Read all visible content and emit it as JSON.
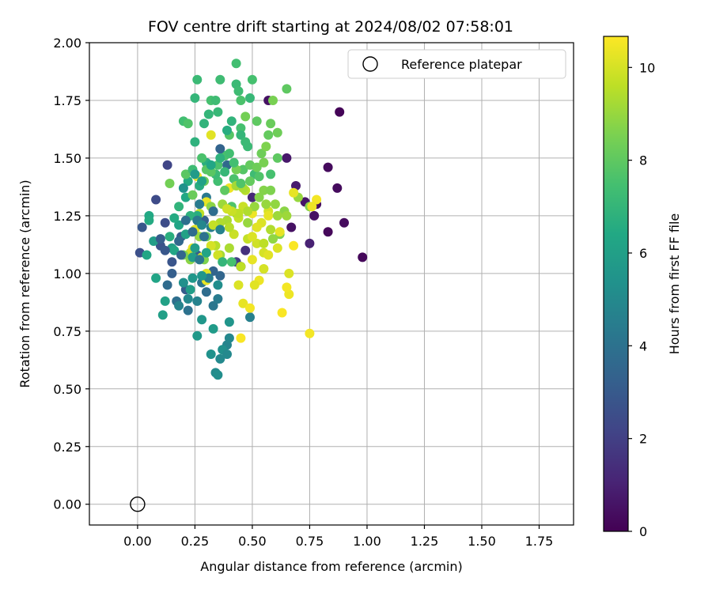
{
  "chart_data": {
    "type": "scatter",
    "title": "FOV centre drift starting at 2024/08/02 07:58:01",
    "xlabel": "Angular distance from reference (arcmin)",
    "ylabel": "Rotation from reference (arcmin)",
    "xlim": [
      -0.21,
      1.9
    ],
    "ylim": [
      -0.09,
      2.0
    ],
    "x_ticks": [
      "0.00",
      "0.25",
      "0.50",
      "0.75",
      "1.00",
      "1.25",
      "1.50",
      "1.75"
    ],
    "y_ticks": [
      "0.00",
      "0.25",
      "0.50",
      "0.75",
      "1.00",
      "1.25",
      "1.50",
      "1.75",
      "2.00"
    ],
    "grid": true,
    "legend": {
      "label": "Reference platepar",
      "placement": "top-right"
    },
    "reference_point": {
      "x": 0.0,
      "y": 0.0
    },
    "colorbar": {
      "label": "Hours from first FF file",
      "range": [
        0,
        10.67
      ],
      "ticks": [
        "0",
        "2",
        "4",
        "6",
        "8",
        "10"
      ],
      "colormap": "viridis"
    },
    "points": [
      [
        0.88,
        1.7,
        0.1
      ],
      [
        0.98,
        1.07,
        0.2
      ],
      [
        0.9,
        1.22,
        0.3
      ],
      [
        0.83,
        1.18,
        0.2
      ],
      [
        0.83,
        1.46,
        0.3
      ],
      [
        0.87,
        1.37,
        0.3
      ],
      [
        0.78,
        1.3,
        0.4
      ],
      [
        0.77,
        1.25,
        0.5
      ],
      [
        0.73,
        1.31,
        0.6
      ],
      [
        0.75,
        1.13,
        1.0
      ],
      [
        0.67,
        1.2,
        0.5
      ],
      [
        0.69,
        1.38,
        0.8
      ],
      [
        0.65,
        1.5,
        0.7
      ],
      [
        0.57,
        1.75,
        0.5
      ],
      [
        0.45,
        1.03,
        1.0
      ],
      [
        0.5,
        1.33,
        1.2
      ],
      [
        0.47,
        1.1,
        1.5
      ],
      [
        0.43,
        1.05,
        2.0
      ],
      [
        0.13,
        1.47,
        2.2
      ],
      [
        0.08,
        1.32,
        2.4
      ],
      [
        0.01,
        1.09,
        2.6
      ],
      [
        0.02,
        1.2,
        2.9
      ],
      [
        0.1,
        1.12,
        2.7
      ],
      [
        0.12,
        1.22,
        2.5
      ],
      [
        0.15,
        1.05,
        2.8
      ],
      [
        0.19,
        1.16,
        3.0
      ],
      [
        0.21,
        0.93,
        3.1
      ],
      [
        0.26,
        1.08,
        3.2
      ],
      [
        0.29,
        1.23,
        3.3
      ],
      [
        0.33,
        1.01,
        3.4
      ],
      [
        0.36,
        0.99,
        3.5
      ],
      [
        0.3,
        0.92,
        3.8
      ],
      [
        0.22,
        0.84,
        4.0
      ],
      [
        0.17,
        0.88,
        3.9
      ],
      [
        0.33,
        0.86,
        4.2
      ],
      [
        0.35,
        0.89,
        4.4
      ],
      [
        0.13,
        0.95,
        3.7
      ],
      [
        0.28,
        0.96,
        4.1
      ],
      [
        0.3,
        1.33,
        4.3
      ],
      [
        0.32,
        1.2,
        4.5
      ],
      [
        0.49,
        0.81,
        4.6
      ],
      [
        0.39,
        0.69,
        4.8
      ],
      [
        0.4,
        0.72,
        4.9
      ],
      [
        0.36,
        0.63,
        5.0
      ],
      [
        0.34,
        0.57,
        5.1
      ],
      [
        0.35,
        0.56,
        5.2
      ],
      [
        0.37,
        0.67,
        5.3
      ],
      [
        0.32,
        0.65,
        5.4
      ],
      [
        0.39,
        0.65,
        5.0
      ],
      [
        0.4,
        0.79,
        5.5
      ],
      [
        0.28,
        0.8,
        5.6
      ],
      [
        0.26,
        0.73,
        5.7
      ],
      [
        0.33,
        0.76,
        5.8
      ],
      [
        0.23,
        0.93,
        5.9
      ],
      [
        0.11,
        0.82,
        6.0
      ],
      [
        0.12,
        0.88,
        6.1
      ],
      [
        0.08,
        0.98,
        6.2
      ],
      [
        0.04,
        1.08,
        6.3
      ],
      [
        0.05,
        1.25,
        6.4
      ],
      [
        0.05,
        1.23,
        6.5
      ],
      [
        0.07,
        1.14,
        5.9
      ],
      [
        0.15,
        1.11,
        6.0
      ],
      [
        0.18,
        1.21,
        6.2
      ],
      [
        0.21,
        1.33,
        6.4
      ],
      [
        0.22,
        1.4,
        6.5
      ],
      [
        0.27,
        1.38,
        6.6
      ],
      [
        0.3,
        1.48,
        6.7
      ],
      [
        0.25,
        1.57,
        6.8
      ],
      [
        0.29,
        1.65,
        6.9
      ],
      [
        0.31,
        1.69,
        7.0
      ],
      [
        0.35,
        1.7,
        7.1
      ],
      [
        0.26,
        1.84,
        7.2
      ],
      [
        0.36,
        1.84,
        7.3
      ],
      [
        0.43,
        1.91,
        7.4
      ],
      [
        0.5,
        1.84,
        7.5
      ],
      [
        0.43,
        1.82,
        7.2
      ],
      [
        0.44,
        1.79,
        7.3
      ],
      [
        0.45,
        1.75,
        7.6
      ],
      [
        0.25,
        1.76,
        7.0
      ],
      [
        0.2,
        1.66,
        7.4
      ],
      [
        0.22,
        1.65,
        7.7
      ],
      [
        0.32,
        1.75,
        7.5
      ],
      [
        0.34,
        1.75,
        7.3
      ],
      [
        0.49,
        1.76,
        7.1
      ],
      [
        0.45,
        1.63,
        7.5
      ],
      [
        0.4,
        1.6,
        7.8
      ],
      [
        0.48,
        1.55,
        7.2
      ],
      [
        0.38,
        1.51,
        7.6
      ],
      [
        0.3,
        1.45,
        7.9
      ],
      [
        0.35,
        1.4,
        7.4
      ],
      [
        0.42,
        1.41,
        7.6
      ],
      [
        0.46,
        1.45,
        7.8
      ],
      [
        0.51,
        1.43,
        7.3
      ],
      [
        0.53,
        1.42,
        7.7
      ],
      [
        0.58,
        1.43,
        7.5
      ],
      [
        0.61,
        1.5,
        8.0
      ],
      [
        0.57,
        1.6,
        8.1
      ],
      [
        0.58,
        1.65,
        8.2
      ],
      [
        0.61,
        1.61,
        8.3
      ],
      [
        0.52,
        1.66,
        8.0
      ],
      [
        0.47,
        1.68,
        8.4
      ],
      [
        0.59,
        1.75,
        8.5
      ],
      [
        0.65,
        1.8,
        8.0
      ],
      [
        0.54,
        1.52,
        8.3
      ],
      [
        0.56,
        1.55,
        8.6
      ],
      [
        0.49,
        1.47,
        8.1
      ],
      [
        0.43,
        1.45,
        8.4
      ],
      [
        0.55,
        1.36,
        8.7
      ],
      [
        0.58,
        1.36,
        8.6
      ],
      [
        0.6,
        1.3,
        8.9
      ],
      [
        0.64,
        1.27,
        8.8
      ],
      [
        0.75,
        1.29,
        8.7
      ],
      [
        0.7,
        1.33,
        9.0
      ],
      [
        0.65,
        1.25,
        9.1
      ],
      [
        0.62,
        1.17,
        8.6
      ],
      [
        0.59,
        1.15,
        8.9
      ],
      [
        0.48,
        1.22,
        9.0
      ],
      [
        0.43,
        1.26,
        9.2
      ],
      [
        0.39,
        1.23,
        9.3
      ],
      [
        0.37,
        1.3,
        9.1
      ],
      [
        0.36,
        1.22,
        9.4
      ],
      [
        0.34,
        1.12,
        9.5
      ],
      [
        0.36,
        1.08,
        9.2
      ],
      [
        0.4,
        1.11,
        9.3
      ],
      [
        0.45,
        1.03,
        9.6
      ],
      [
        0.42,
        1.17,
        9.8
      ],
      [
        0.48,
        1.15,
        9.7
      ],
      [
        0.52,
        1.13,
        9.9
      ],
      [
        0.55,
        1.09,
        10.0
      ],
      [
        0.57,
        1.08,
        10.2
      ],
      [
        0.5,
        1.16,
        10.1
      ],
      [
        0.5,
        1.06,
        10.3
      ],
      [
        0.53,
        0.97,
        10.4
      ],
      [
        0.51,
        0.95,
        10.2
      ],
      [
        0.55,
        1.02,
        10.0
      ],
      [
        0.44,
        0.95,
        10.1
      ],
      [
        0.46,
        0.87,
        10.3
      ],
      [
        0.49,
        0.85,
        10.5
      ],
      [
        0.45,
        0.72,
        10.6
      ],
      [
        0.57,
        1.27,
        10.0
      ],
      [
        0.57,
        1.25,
        10.3
      ],
      [
        0.54,
        1.22,
        10.1
      ],
      [
        0.5,
        1.26,
        10.4
      ],
      [
        0.52,
        1.2,
        10.2
      ],
      [
        0.61,
        1.11,
        10.1
      ],
      [
        0.62,
        1.18,
        10.3
      ],
      [
        0.66,
        0.91,
        10.4
      ],
      [
        0.65,
        0.94,
        10.5
      ],
      [
        0.63,
        0.83,
        10.6
      ],
      [
        0.75,
        0.74,
        10.5
      ],
      [
        0.66,
        1.0,
        10.1
      ],
      [
        0.68,
        1.12,
        10.6
      ],
      [
        0.78,
        1.32,
        10.5
      ],
      [
        0.76,
        1.29,
        10.4
      ],
      [
        0.68,
        1.35,
        10.3
      ],
      [
        0.32,
        1.6,
        10.2
      ],
      [
        0.26,
        1.42,
        10.5
      ],
      [
        0.3,
        1.31,
        10.3
      ],
      [
        0.3,
        1.0,
        10.2
      ],
      [
        0.32,
        1.12,
        10.0
      ],
      [
        0.24,
        1.11,
        10.4
      ],
      [
        0.28,
        1.07,
        10.1
      ],
      [
        0.3,
        0.97,
        10.3
      ],
      [
        0.4,
        1.37,
        10.4
      ],
      [
        0.25,
        1.19,
        10.2
      ],
      [
        0.23,
        1.09,
        9.8
      ],
      [
        0.27,
        1.26,
        9.6
      ],
      [
        0.35,
        1.08,
        9.9
      ],
      [
        0.44,
        1.24,
        9.7
      ],
      [
        0.47,
        1.36,
        9.5
      ],
      [
        0.46,
        1.37,
        9.3
      ],
      [
        0.46,
        1.29,
        9.8
      ],
      [
        0.55,
        1.13,
        9.6
      ],
      [
        0.58,
        1.19,
        9.4
      ],
      [
        0.61,
        1.25,
        9.1
      ],
      [
        0.56,
        1.3,
        9.0
      ],
      [
        0.43,
        1.38,
        9.2
      ],
      [
        0.4,
        1.2,
        9.5
      ],
      [
        0.33,
        1.21,
        9.7
      ],
      [
        0.27,
        1.16,
        9.0
      ],
      [
        0.23,
        1.06,
        8.8
      ],
      [
        0.29,
        1.06,
        8.6
      ],
      [
        0.2,
        1.08,
        8.5
      ],
      [
        0.14,
        1.39,
        8.4
      ],
      [
        0.21,
        1.43,
        7.9
      ],
      [
        0.24,
        1.34,
        8.2
      ],
      [
        0.3,
        1.16,
        8.3
      ],
      [
        0.32,
        1.29,
        8.8
      ],
      [
        0.41,
        1.05,
        7.5
      ],
      [
        0.37,
        1.05,
        7.0
      ],
      [
        0.41,
        1.29,
        7.7
      ],
      [
        0.38,
        1.36,
        8.0
      ],
      [
        0.34,
        1.43,
        7.2
      ],
      [
        0.28,
        1.5,
        7.6
      ],
      [
        0.24,
        1.45,
        7.3
      ],
      [
        0.26,
        1.25,
        6.6
      ],
      [
        0.23,
        1.25,
        6.8
      ],
      [
        0.14,
        1.16,
        6.7
      ],
      [
        0.16,
        1.1,
        6.3
      ],
      [
        0.21,
        1.17,
        6.1
      ],
      [
        0.24,
        1.07,
        5.8
      ],
      [
        0.24,
        0.98,
        5.6
      ],
      [
        0.2,
        0.96,
        5.3
      ],
      [
        0.22,
        0.89,
        5.0
      ],
      [
        0.18,
        0.86,
        4.8
      ],
      [
        0.26,
        0.88,
        4.7
      ],
      [
        0.31,
        0.98,
        4.5
      ],
      [
        0.27,
        1.06,
        4.2
      ],
      [
        0.29,
        1.16,
        4.0
      ],
      [
        0.33,
        1.27,
        3.8
      ],
      [
        0.39,
        1.47,
        3.6
      ],
      [
        0.36,
        1.54,
        3.4
      ],
      [
        0.39,
        1.62,
        6.6
      ],
      [
        0.41,
        1.66,
        6.9
      ],
      [
        0.45,
        1.6,
        7.0
      ],
      [
        0.47,
        1.57,
        7.2
      ],
      [
        0.4,
        1.52,
        7.4
      ],
      [
        0.35,
        1.47,
        7.6
      ],
      [
        0.32,
        1.44,
        7.9
      ],
      [
        0.29,
        1.4,
        8.2
      ],
      [
        0.18,
        1.29,
        6.9
      ],
      [
        0.16,
        1.24,
        6.5
      ],
      [
        0.25,
        1.11,
        5.9
      ],
      [
        0.3,
        1.09,
        6.2
      ],
      [
        0.28,
        0.99,
        5.5
      ],
      [
        0.35,
        0.95,
        5.2
      ],
      [
        0.36,
        1.19,
        4.7
      ],
      [
        0.26,
        1.23,
        4.3
      ],
      [
        0.21,
        1.23,
        3.9
      ],
      [
        0.19,
        1.08,
        3.5
      ],
      [
        0.15,
        1.0,
        3.2
      ],
      [
        0.12,
        1.1,
        2.9
      ],
      [
        0.1,
        1.15,
        3.1
      ],
      [
        0.18,
        1.14,
        3.6
      ],
      [
        0.24,
        1.18,
        3.7
      ],
      [
        0.27,
        1.3,
        4.4
      ],
      [
        0.28,
        1.21,
        4.9
      ],
      [
        0.2,
        1.37,
        5.4
      ],
      [
        0.25,
        1.43,
        5.8
      ],
      [
        0.28,
        1.4,
        6.1
      ],
      [
        0.32,
        1.47,
        6.3
      ],
      [
        0.36,
        1.5,
        6.8
      ],
      [
        0.38,
        1.44,
        7.1
      ],
      [
        0.42,
        1.48,
        7.4
      ],
      [
        0.45,
        1.39,
        7.7
      ],
      [
        0.49,
        1.4,
        8.1
      ],
      [
        0.52,
        1.46,
        8.3
      ],
      [
        0.55,
        1.48,
        8.5
      ],
      [
        0.53,
        1.33,
        8.7
      ],
      [
        0.51,
        1.29,
        9.0
      ],
      [
        0.48,
        1.27,
        9.4
      ],
      [
        0.44,
        1.26,
        9.6
      ],
      [
        0.41,
        1.27,
        9.8
      ],
      [
        0.39,
        1.28,
        9.9
      ]
    ]
  }
}
